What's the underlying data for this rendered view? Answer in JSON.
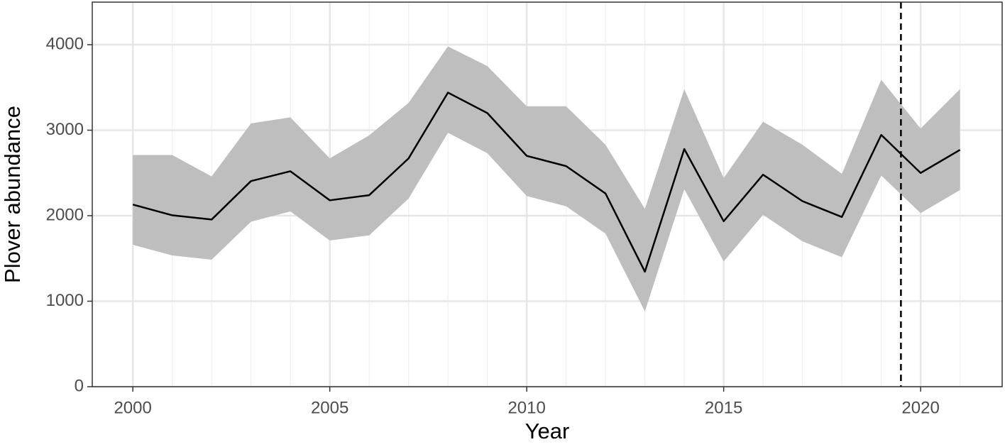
{
  "chart_data": {
    "type": "line",
    "x_label": "Year",
    "y_label": "Plover abundance",
    "x": [
      2000,
      2001,
      2002,
      2003,
      2004,
      2005,
      2006,
      2007,
      2008,
      2009,
      2010,
      2011,
      2012,
      2013,
      2014,
      2015,
      2016,
      2017,
      2018,
      2019,
      2020,
      2021
    ],
    "values": [
      2130,
      2005,
      1955,
      2405,
      2520,
      2180,
      2240,
      2670,
      3440,
      3200,
      2700,
      2580,
      2260,
      1345,
      2780,
      1935,
      2480,
      2170,
      1985,
      2945,
      2500,
      2770
    ],
    "lower": [
      1660,
      1535,
      1485,
      1930,
      2050,
      1710,
      1770,
      2200,
      2970,
      2730,
      2230,
      2110,
      1790,
      880,
      2310,
      1465,
      2010,
      1700,
      1515,
      2470,
      2030,
      2300
    ],
    "upper": [
      2710,
      2710,
      2460,
      3080,
      3150,
      2670,
      2940,
      3320,
      3980,
      3750,
      3280,
      3280,
      2830,
      2080,
      3480,
      2440,
      3100,
      2830,
      2490,
      3590,
      3020,
      3480
    ],
    "color": "#000000",
    "band_color": "#bebebe",
    "vline": 2019.5,
    "xlim": [
      1998.97,
      2022.07
    ],
    "ylim": [
      0,
      4498
    ],
    "xticks": [
      2000,
      2005,
      2010,
      2015,
      2020
    ],
    "yticks": [
      0,
      1000,
      2000,
      3000,
      4000
    ],
    "grid": true
  }
}
